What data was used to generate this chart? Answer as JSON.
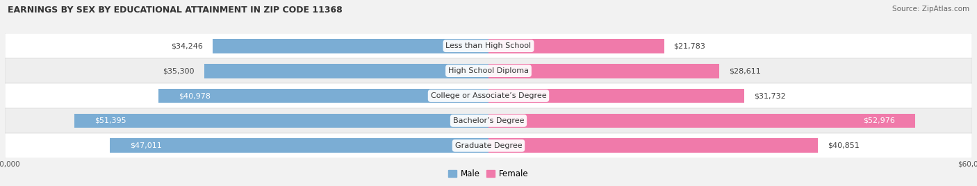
{
  "title": "EARNINGS BY SEX BY EDUCATIONAL ATTAINMENT IN ZIP CODE 11368",
  "source": "Source: ZipAtlas.com",
  "categories": [
    "Less than High School",
    "High School Diploma",
    "College or Associate’s Degree",
    "Bachelor’s Degree",
    "Graduate Degree"
  ],
  "male_values": [
    34246,
    35300,
    40978,
    51395,
    47011
  ],
  "female_values": [
    21783,
    28611,
    31732,
    52976,
    40851
  ],
  "male_color": "#7badd4",
  "female_color": "#f07aaa",
  "max_value": 60000,
  "bar_height": 0.58,
  "background_color": "#f2f2f2",
  "row_bg_odd": "#ffffff",
  "row_bg_even": "#eeeeee",
  "label_fontsize": 8.0,
  "title_fontsize": 9.0,
  "source_fontsize": 7.5
}
